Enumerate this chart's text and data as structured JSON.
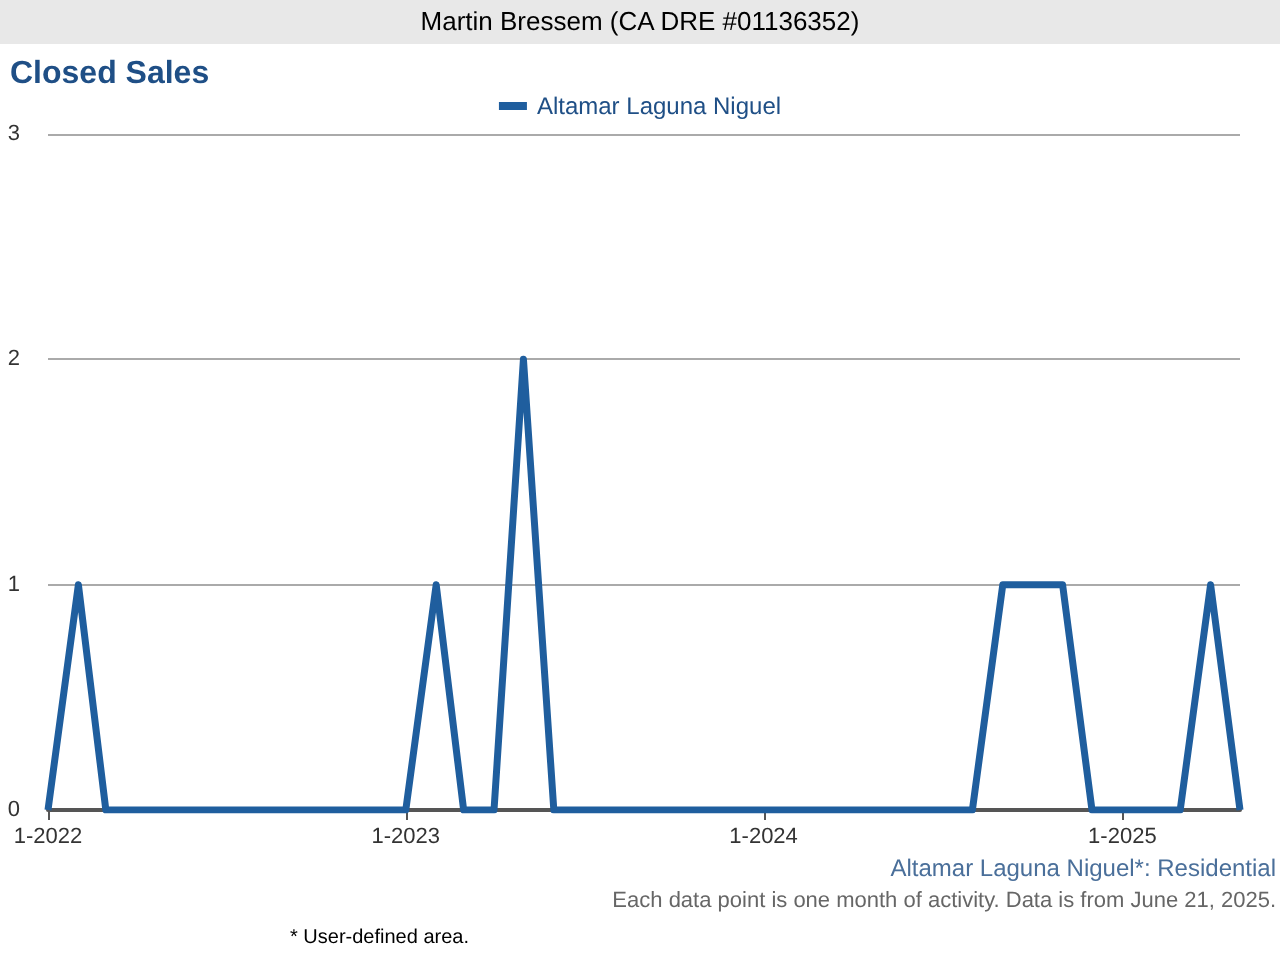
{
  "chart_data": {
    "type": "line",
    "title": "Closed Sales",
    "subtitle": "Martin Bressem (CA DRE #01136352)",
    "x": [
      "2022-01",
      "2022-02",
      "2022-03",
      "2022-04",
      "2022-05",
      "2022-06",
      "2022-07",
      "2022-08",
      "2022-09",
      "2022-10",
      "2022-11",
      "2022-12",
      "2023-01",
      "2023-02",
      "2023-03",
      "2023-04",
      "2023-05",
      "2023-06",
      "2023-07",
      "2023-08",
      "2023-09",
      "2023-10",
      "2023-11",
      "2023-12",
      "2024-01",
      "2024-02",
      "2024-03",
      "2024-04",
      "2024-05",
      "2024-06",
      "2024-07",
      "2024-08",
      "2024-09",
      "2024-10",
      "2024-11",
      "2024-12",
      "2025-01",
      "2025-02",
      "2025-03",
      "2025-04",
      "2025-05"
    ],
    "series": [
      {
        "name": "Altamar Laguna Niguel",
        "color": "#1f5e9e",
        "values": [
          0,
          1,
          0,
          0,
          0,
          0,
          0,
          0,
          0,
          0,
          0,
          0,
          0,
          1,
          0,
          0,
          2,
          0,
          0,
          0,
          0,
          0,
          0,
          0,
          0,
          0,
          0,
          0,
          0,
          0,
          0,
          0,
          1,
          1,
          1,
          0,
          0,
          0,
          0,
          1,
          0
        ]
      }
    ],
    "xlim": [
      "2022-01",
      "2025-05"
    ],
    "xticks": [
      {
        "value": "2022-01",
        "label": "1-2022"
      },
      {
        "value": "2023-01",
        "label": "1-2023"
      },
      {
        "value": "2024-01",
        "label": "1-2024"
      },
      {
        "value": "2025-01",
        "label": "1-2025"
      }
    ],
    "ylim": [
      0,
      3
    ],
    "yticks": [
      0,
      1,
      2,
      3
    ],
    "grid": "y",
    "legend": "top",
    "marker": "none",
    "line_style": "solid",
    "annotations": [
      "Altamar Laguna Niguel*: Residential",
      "Each data point is one month of activity. Data is from June 21, 2025.",
      "* User-defined area."
    ]
  }
}
